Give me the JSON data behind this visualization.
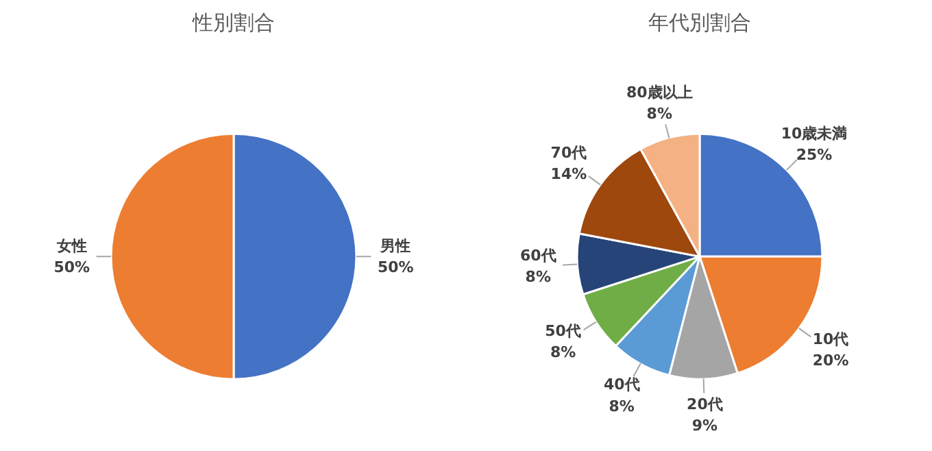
{
  "chart_data": [
    {
      "type": "pie",
      "title": "性別割合",
      "categories": [
        "男性",
        "女性"
      ],
      "values": [
        50,
        50
      ],
      "colors": [
        "#4472c4",
        "#ed7d31"
      ],
      "value_labels": [
        "50%",
        "50%"
      ]
    },
    {
      "type": "pie",
      "title": "年代別割合",
      "categories": [
        "10歳未満",
        "10代",
        "20代",
        "40代",
        "50代",
        "60代",
        "70代",
        "80歳以上"
      ],
      "values": [
        25,
        20,
        9,
        8,
        8,
        8,
        14,
        8
      ],
      "colors": [
        "#4472c4",
        "#ed7d31",
        "#a5a5a5",
        "#5b9bd5",
        "#70ad47",
        "#264478",
        "#9e480e",
        "#f4b183"
      ],
      "value_labels": [
        "25%",
        "20%",
        "9%",
        "8%",
        "8%",
        "8%",
        "14%",
        "8%"
      ]
    }
  ]
}
